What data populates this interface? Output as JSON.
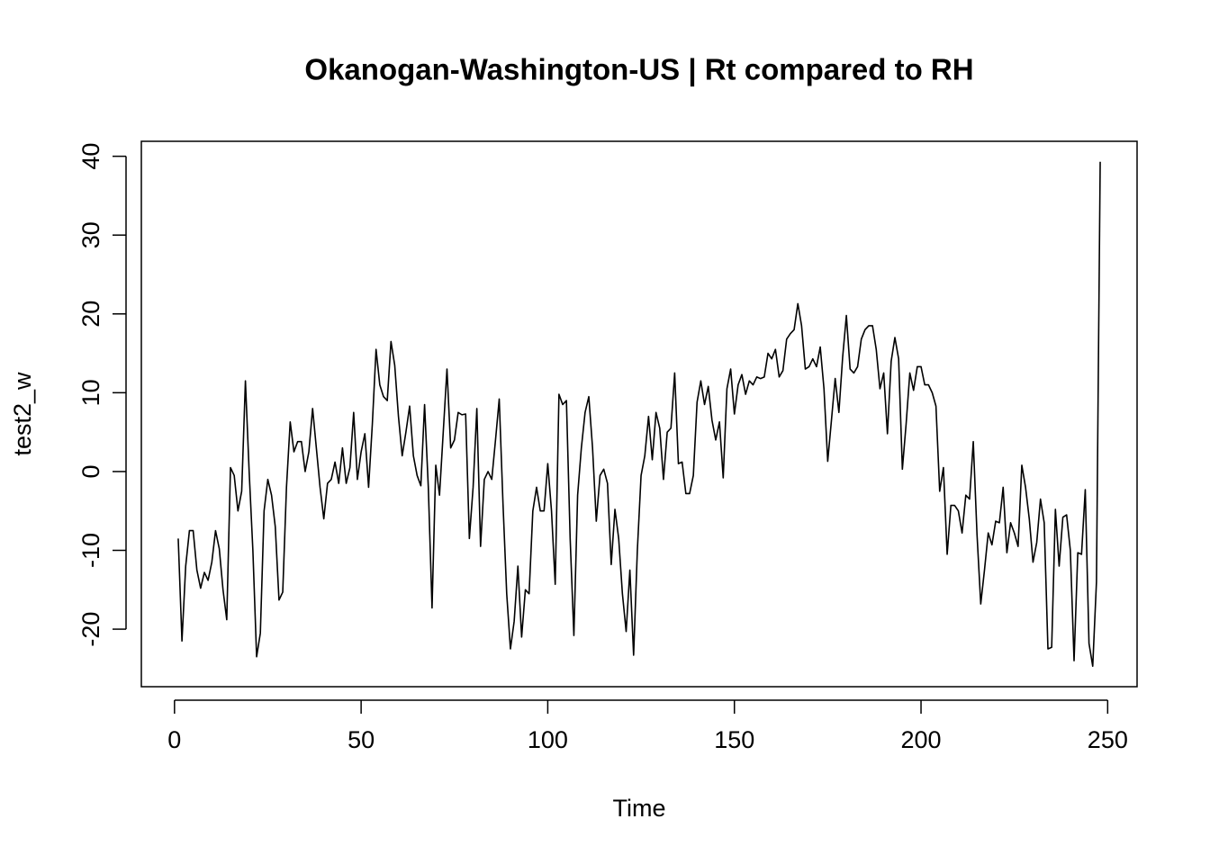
{
  "chart_data": {
    "type": "line",
    "title": "Okanogan-Washington-US | Rt compared to RH",
    "x_label": "Time",
    "y_label": "test2_w",
    "color": "#000000",
    "x": [
      1,
      2,
      3,
      4,
      5,
      6,
      7,
      8,
      9,
      10,
      11,
      12,
      13,
      14,
      15,
      16,
      17,
      18,
      19,
      20,
      21,
      22,
      23,
      24,
      25,
      26,
      27,
      28,
      29,
      30,
      31,
      32,
      33,
      34,
      35,
      36,
      37,
      38,
      39,
      40,
      41,
      42,
      43,
      44,
      45,
      46,
      47,
      48,
      49,
      50,
      51,
      52,
      53,
      54,
      55,
      56,
      57,
      58,
      59,
      60,
      61,
      62,
      63,
      64,
      65,
      66,
      67,
      68,
      69,
      70,
      71,
      72,
      73,
      74,
      75,
      76,
      77,
      78,
      79,
      80,
      81,
      82,
      83,
      84,
      85,
      86,
      87,
      88,
      89,
      90,
      91,
      92,
      93,
      94,
      95,
      96,
      97,
      98,
      99,
      100,
      101,
      102,
      103,
      104,
      105,
      106,
      107,
      108,
      109,
      110,
      111,
      112,
      113,
      114,
      115,
      116,
      117,
      118,
      119,
      120,
      121,
      122,
      123,
      124,
      125,
      126,
      127,
      128,
      129,
      130,
      131,
      132,
      133,
      134,
      135,
      136,
      137,
      138,
      139,
      140,
      141,
      142,
      143,
      144,
      145,
      146,
      147,
      148,
      149,
      150,
      151,
      152,
      153,
      154,
      155,
      156,
      157,
      158,
      159,
      160,
      161,
      162,
      163,
      164,
      165,
      166,
      167,
      168,
      169,
      170,
      171,
      172,
      173,
      174,
      175,
      176,
      177,
      178,
      179,
      180,
      181,
      182,
      183,
      184,
      185,
      186,
      187,
      188,
      189,
      190,
      191,
      192,
      193,
      194,
      195,
      196,
      197,
      198,
      199,
      200,
      201,
      202,
      203,
      204,
      205,
      206,
      207,
      208,
      209,
      210,
      211,
      212,
      213,
      214,
      215,
      216,
      217,
      218,
      219,
      220,
      221,
      222,
      223,
      224,
      225,
      226,
      227,
      228,
      229,
      230,
      231,
      232,
      233,
      234,
      235,
      236,
      237,
      238,
      239,
      240,
      241,
      242,
      243,
      244,
      245,
      246,
      247,
      248
    ],
    "values": [
      -8.5,
      -21.5,
      -12,
      -7.5,
      -7.5,
      -12.5,
      -14.8,
      -12.8,
      -13.8,
      -11.5,
      -7.5,
      -9.8,
      -15,
      -18.8,
      0.5,
      -0.5,
      -5,
      -2.5,
      11.5,
      0,
      -10,
      -23.5,
      -20.5,
      -5,
      -1,
      -3,
      -7,
      -16.3,
      -15.3,
      -2,
      6.3,
      2.5,
      3.8,
      3.8,
      0,
      2.5,
      8,
      3,
      -2,
      -6,
      -1.5,
      -1,
      1.2,
      -1.5,
      3,
      -1.5,
      0.5,
      7.5,
      -1,
      2.5,
      4.8,
      -2,
      6,
      15.5,
      11,
      9.5,
      9,
      16.5,
      13.5,
      7,
      2,
      5,
      8.3,
      2,
      -0.5,
      -1.8,
      8.5,
      -2,
      -17.3,
      0.8,
      -3,
      5,
      13,
      3,
      4,
      7.5,
      7.2,
      7.3,
      -8.5,
      -2,
      8,
      -9.5,
      -1,
      0,
      -1,
      4,
      9.2,
      -4,
      -15.5,
      -22.5,
      -19,
      -12,
      -21,
      -15,
      -15.5,
      -5,
      -2,
      -5,
      -5,
      1,
      -5,
      -14.3,
      9.8,
      8.5,
      9,
      -8.5,
      -20.8,
      -3,
      3,
      7.5,
      9.5,
      3,
      -6.3,
      -0.5,
      0.3,
      -1.5,
      -11.8,
      -4.8,
      -8.5,
      -15.5,
      -20.3,
      -12.5,
      -23.3,
      -10,
      -0.5,
      2,
      7,
      1.5,
      7.5,
      5.5,
      -1,
      5,
      5.5,
      12.5,
      1,
      1.2,
      -2.8,
      -2.8,
      -0.5,
      8.8,
      11.5,
      8.5,
      10.8,
      6.5,
      4,
      6.3,
      -0.8,
      10.5,
      13,
      7.3,
      11,
      12.3,
      9.8,
      11.5,
      11,
      12,
      11.8,
      12,
      15,
      14.3,
      15.5,
      12,
      12.8,
      16.8,
      17.5,
      18,
      21.3,
      18.5,
      13,
      13.3,
      14.3,
      13.3,
      15.8,
      10.5,
      1.3,
      6.5,
      11.8,
      7.5,
      14.5,
      19.8,
      13,
      12.5,
      13.3,
      16.8,
      18,
      18.5,
      18.5,
      15.5,
      10.5,
      12.5,
      4.8,
      14,
      17,
      14.3,
      0.3,
      6,
      12.5,
      10.3,
      13.3,
      13.3,
      11,
      11,
      10,
      8.3,
      -2.5,
      0.5,
      -10.5,
      -4.3,
      -4.3,
      -5,
      -7.8,
      -3,
      -3.5,
      3.8,
      -8,
      -16.8,
      -12.5,
      -7.8,
      -9.3,
      -6.3,
      -6.5,
      -2,
      -10.3,
      -6.5,
      -7.8,
      -9.5,
      0.8,
      -2,
      -6,
      -11.5,
      -9,
      -3.5,
      -6.5,
      -22.5,
      -22.3,
      -4.8,
      -12,
      -5.8,
      -5.5,
      -10,
      -24,
      -10.3,
      -10.5,
      -2.3,
      -21.8,
      -24.7,
      -14,
      39.3
    ],
    "xlim": [
      -8.88,
      257.88
    ],
    "ylim": [
      -27.3,
      41.9
    ],
    "xticks": [
      0,
      50,
      100,
      150,
      200,
      250
    ],
    "yticks": [
      -20,
      -10,
      0,
      10,
      20,
      30,
      40
    ]
  }
}
